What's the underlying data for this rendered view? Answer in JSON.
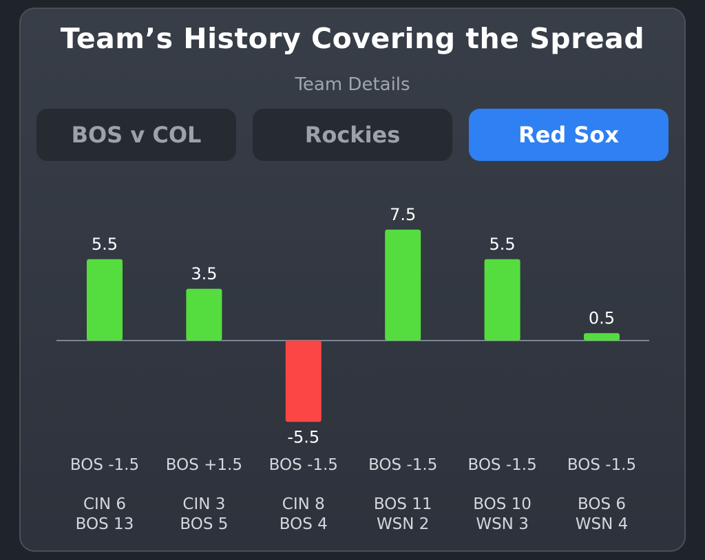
{
  "header": {
    "title": "Team’s History Covering the Spread",
    "subtitle": "Team Details"
  },
  "tabs": [
    {
      "label": "BOS v COL",
      "active": false
    },
    {
      "label": "Rockies",
      "active": false
    },
    {
      "label": "Red Sox",
      "active": true
    }
  ],
  "colors": {
    "positive": "#55dd3f",
    "negative": "#fc4545",
    "baseline": "#7d8796",
    "active_tab": "#2f80f2"
  },
  "chart_data": {
    "type": "bar",
    "categories": [
      "BOS -1.5",
      "BOS +1.5",
      "BOS -1.5",
      "BOS -1.5",
      "BOS -1.5",
      "BOS -1.5"
    ],
    "scores": [
      [
        "CIN 6",
        "BOS 13"
      ],
      [
        "CIN 3",
        "BOS 5"
      ],
      [
        "CIN 8",
        "BOS 4"
      ],
      [
        "BOS 11",
        "WSN 2"
      ],
      [
        "BOS 10",
        "WSN 3"
      ],
      [
        "BOS 6",
        "WSN 4"
      ]
    ],
    "values": [
      5.5,
      3.5,
      -5.5,
      7.5,
      5.5,
      0.5
    ],
    "value_labels": [
      "5.5",
      "3.5",
      "-5.5",
      "7.5",
      "5.5",
      "0.5"
    ],
    "ylim": [
      -5.5,
      7.5
    ],
    "grid": false,
    "legend": "none"
  }
}
